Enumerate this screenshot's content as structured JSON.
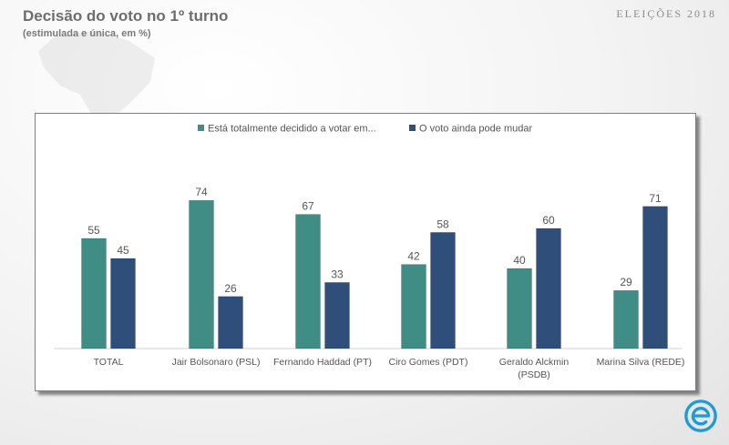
{
  "header": {
    "title": "Decisão do voto no 1º turno",
    "subtitle": "(estimulada e única, em %)",
    "brand": "ELEIÇÕES 2018"
  },
  "icons": {
    "background": "brazil-map-icon",
    "logo": "e-logo-icon"
  },
  "chart_data": {
    "type": "bar",
    "categories": [
      "TOTAL",
      "Jair Bolsonaro (PSL)",
      "Fernando Haddad (PT)",
      "Ciro Gomes (PDT)",
      "Geraldo Alckmin (PSDB)",
      "Marina Silva (REDE)"
    ],
    "category_lines": [
      [
        "TOTAL"
      ],
      [
        "Jair Bolsonaro (PSL)"
      ],
      [
        "Fernando Haddad (PT)"
      ],
      [
        "Ciro Gomes (PDT)"
      ],
      [
        "Geraldo Alckmin",
        "(PSDB)"
      ],
      [
        "Marina Silva (REDE)"
      ]
    ],
    "series": [
      {
        "name": "Está totalmente decidido a votar em...",
        "color": "#3f8d84",
        "values": [
          55,
          74,
          67,
          42,
          40,
          29
        ]
      },
      {
        "name": "O voto ainda pode mudar",
        "color": "#2f4f7a",
        "values": [
          45,
          26,
          33,
          58,
          60,
          71
        ]
      }
    ],
    "ylim": [
      0,
      80
    ],
    "legend_position": "top",
    "grid": false,
    "data_labels": true
  }
}
